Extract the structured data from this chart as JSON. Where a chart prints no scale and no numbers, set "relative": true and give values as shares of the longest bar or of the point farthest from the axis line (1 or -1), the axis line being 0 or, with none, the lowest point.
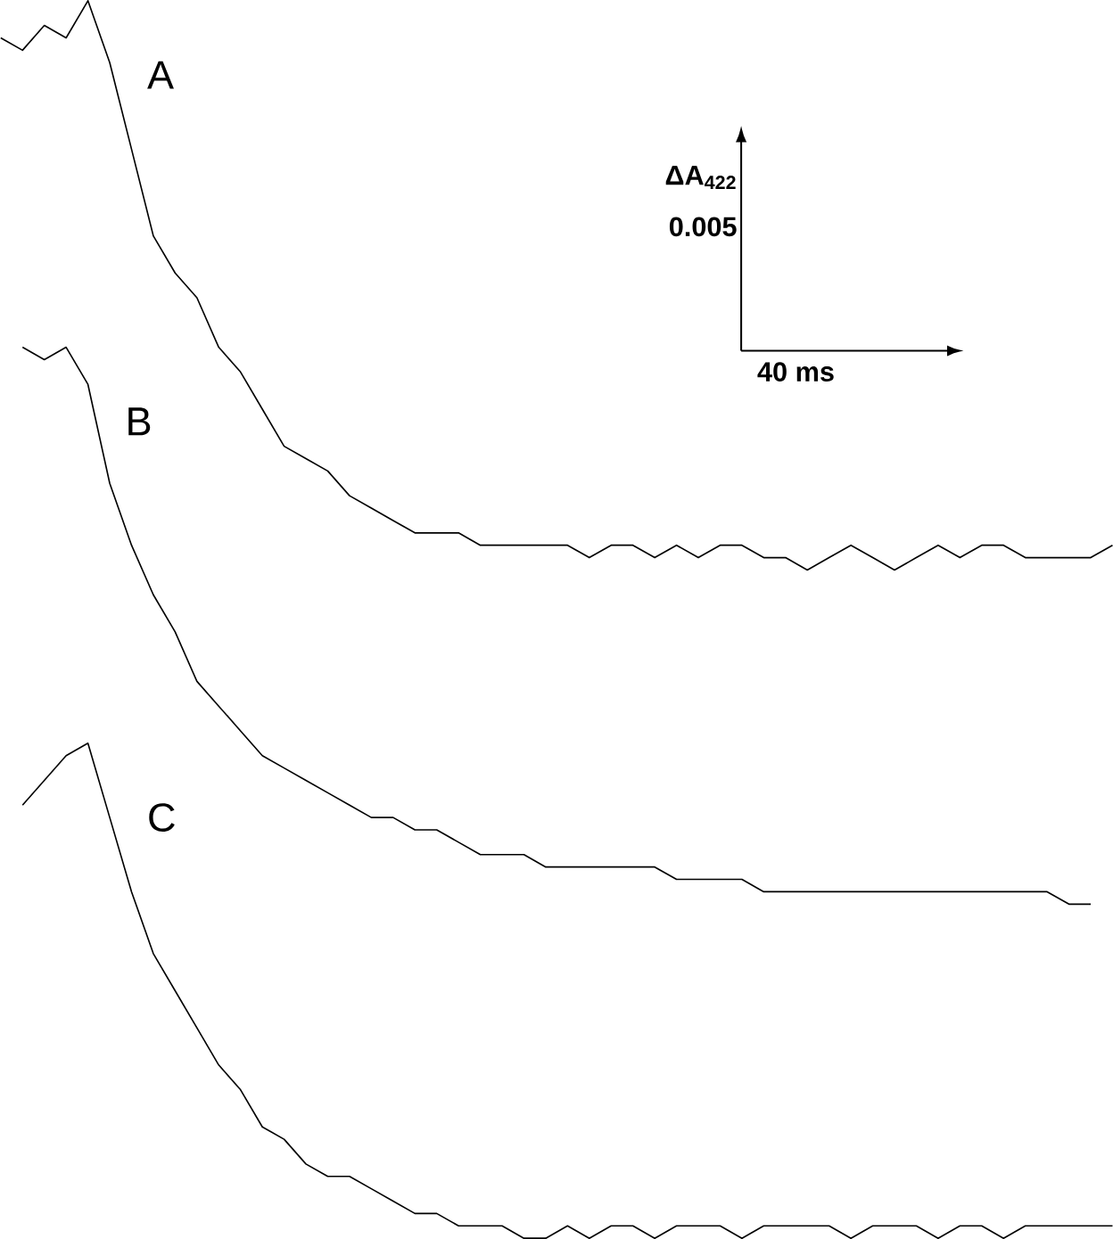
{
  "chart_data": {
    "type": "line",
    "relative": true,
    "tick_labels": false,
    "categories": [
      null,
      null,
      null,
      null,
      null,
      null,
      null,
      null,
      null,
      null,
      null,
      null,
      null,
      null,
      null,
      null,
      null,
      null,
      null,
      null,
      null,
      null,
      null,
      null,
      null,
      null,
      null,
      null,
      null,
      null,
      null,
      null,
      null,
      null,
      null,
      null,
      null,
      null,
      null,
      null,
      null,
      null,
      null,
      null,
      null,
      null,
      null,
      null,
      null,
      null,
      null,
      null
    ],
    "annotations": [
      "ΔA$_{422}$",
      "0.005",
      "40 ms"
    ],
    "series": [
      {
        "name": "A",
        "color": "#000000",
        "values": [
          0.97,
          0.96,
          0.98,
          0.97,
          1.0,
          0.95,
          0.88,
          0.81,
          0.78,
          0.76,
          0.72,
          0.7,
          0.67,
          0.64,
          0.63,
          0.62,
          0.6,
          0.59,
          0.58,
          0.57,
          0.57,
          0.57,
          0.56,
          0.56,
          0.56,
          0.56,
          0.56,
          0.55,
          0.56,
          0.56,
          0.55,
          0.56,
          0.55,
          0.56,
          0.56,
          0.55,
          0.55,
          0.54,
          0.55,
          0.56,
          0.55,
          0.54,
          0.55,
          0.56,
          0.55,
          0.56,
          0.56,
          0.55,
          0.55,
          0.55,
          0.55,
          0.56
        ]
      },
      {
        "name": "B",
        "color": "#000000",
        "values": [
          null,
          0.72,
          0.71,
          0.72,
          0.69,
          0.61,
          0.56,
          0.52,
          0.49,
          0.45,
          0.43,
          0.41,
          0.39,
          0.38,
          0.37,
          0.36,
          0.35,
          0.34,
          0.34,
          0.33,
          0.33,
          0.32,
          0.31,
          0.31,
          0.31,
          0.3,
          0.3,
          0.3,
          0.3,
          0.3,
          0.3,
          0.29,
          0.29,
          0.29,
          0.29,
          0.28,
          0.28,
          0.28,
          0.28,
          0.28,
          0.28,
          0.28,
          0.28,
          0.28,
          0.28,
          0.28,
          0.28,
          0.28,
          0.28,
          0.27,
          0.27,
          null
        ]
      },
      {
        "name": "C",
        "color": "#000000",
        "values": [
          null,
          0.35,
          0.37,
          0.39,
          0.4,
          0.34,
          0.28,
          0.23,
          0.2,
          0.17,
          0.14,
          0.12,
          0.09,
          0.08,
          0.06,
          0.05,
          0.05,
          0.04,
          0.03,
          0.02,
          0.02,
          0.01,
          0.01,
          0.01,
          0.0,
          0.0,
          0.01,
          0,
          0.01,
          0.01,
          0,
          0.01,
          0.01,
          0.01,
          0,
          0.01,
          0.01,
          0.01,
          0.01,
          0,
          0.01,
          0.01,
          0.01,
          0,
          0.01,
          0.01,
          0,
          0.01,
          0.01,
          0.01,
          0.01,
          0.01
        ]
      }
    ]
  }
}
